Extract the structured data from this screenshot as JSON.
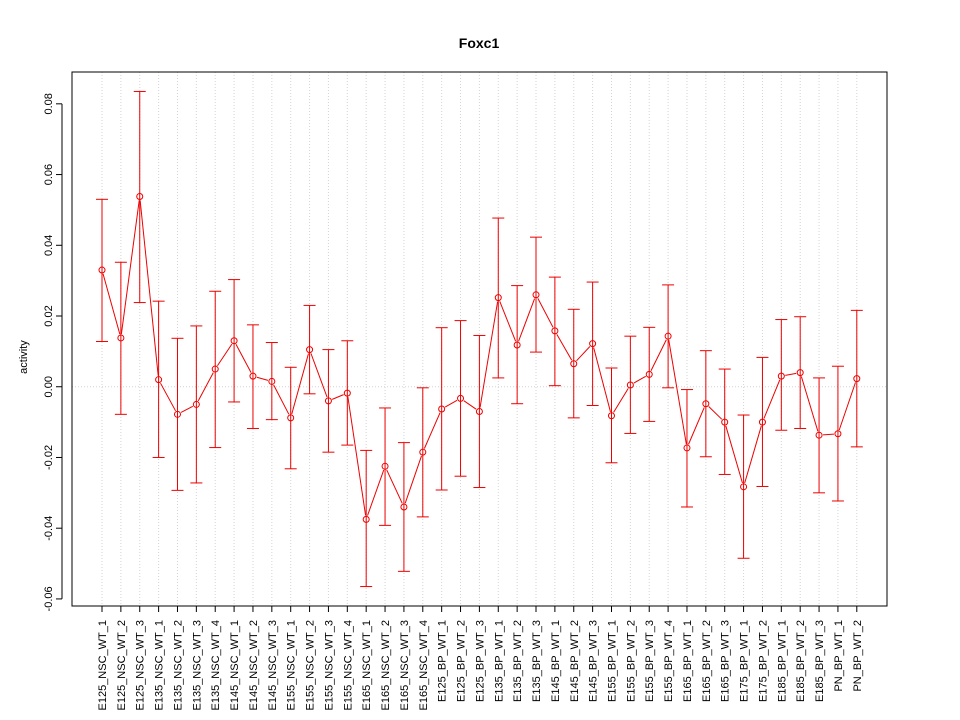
{
  "chart_data": {
    "type": "line",
    "title": "Foxc1",
    "xlabel": "",
    "ylabel": "activity",
    "ylim": [
      -0.062,
      0.089
    ],
    "yticks": [
      -0.06,
      -0.04,
      -0.02,
      0.0,
      0.02,
      0.04,
      0.06,
      0.08
    ],
    "ytick_labels": [
      "-0.06",
      "-0.04",
      "-0.02",
      "0.00",
      "0.02",
      "0.04",
      "0.06",
      "0.08"
    ],
    "grid": true,
    "zero_line": true,
    "color": "#ee0000",
    "categories": [
      "E125_NSC_WT_1",
      "E125_NSC_WT_2",
      "E125_NSC_WT_3",
      "E135_NSC_WT_1",
      "E135_NSC_WT_2",
      "E135_NSC_WT_3",
      "E135_NSC_WT_4",
      "E145_NSC_WT_1",
      "E145_NSC_WT_2",
      "E145_NSC_WT_3",
      "E155_NSC_WT_1",
      "E155_NSC_WT_2",
      "E155_NSC_WT_3",
      "E155_NSC_WT_4",
      "E165_NSC_WT_1",
      "E165_NSC_WT_2",
      "E165_NSC_WT_3",
      "E165_NSC_WT_4",
      "E125_BP_WT_1",
      "E125_BP_WT_2",
      "E125_BP_WT_3",
      "E135_BP_WT_1",
      "E135_BP_WT_2",
      "E135_BP_WT_3",
      "E145_BP_WT_1",
      "E145_BP_WT_2",
      "E145_BP_WT_3",
      "E155_BP_WT_1",
      "E155_BP_WT_2",
      "E155_BP_WT_3",
      "E155_BP_WT_4",
      "E165_BP_WT_1",
      "E165_BP_WT_2",
      "E165_BP_WT_3",
      "E175_BP_WT_1",
      "E175_BP_WT_2",
      "E185_BP_WT_1",
      "E185_BP_WT_2",
      "E185_BP_WT_3",
      "PN_BP_WT_1",
      "PN_BP_WT_2"
    ],
    "series": [
      {
        "values": [
          0.033,
          0.0138,
          0.0538,
          0.002,
          -0.0078,
          -0.005,
          0.005,
          0.013,
          0.003,
          0.0015,
          -0.0088,
          0.0105,
          -0.004,
          -0.0018,
          -0.0375,
          -0.0225,
          -0.034,
          -0.0185,
          -0.0063,
          -0.0033,
          -0.007,
          0.0252,
          0.0118,
          0.026,
          0.0158,
          0.0065,
          0.0122,
          -0.0082,
          0.0005,
          0.0035,
          0.0143,
          -0.0173,
          -0.0048,
          -0.01,
          -0.0283,
          -0.01,
          0.003,
          0.004,
          -0.0137,
          -0.0133,
          0.0023
        ],
        "lower": [
          0.0128,
          -0.0078,
          0.0238,
          -0.02,
          -0.0293,
          -0.0272,
          -0.0172,
          -0.0043,
          -0.0118,
          -0.0093,
          -0.0232,
          -0.002,
          -0.0185,
          -0.0165,
          -0.0565,
          -0.0392,
          -0.0522,
          -0.0368,
          -0.0292,
          -0.0253,
          -0.0285,
          0.0025,
          -0.0048,
          0.0098,
          0.0003,
          -0.0088,
          -0.0053,
          -0.0215,
          -0.0132,
          -0.0098,
          -0.0003,
          -0.034,
          -0.0198,
          -0.0248,
          -0.0485,
          -0.0282,
          -0.0123,
          -0.0118,
          -0.03,
          -0.0323,
          -0.017
        ],
        "upper": [
          0.053,
          0.0352,
          0.0835,
          0.0242,
          0.0137,
          0.0172,
          0.027,
          0.0303,
          0.0175,
          0.0125,
          0.0055,
          0.023,
          0.0105,
          0.013,
          -0.018,
          -0.006,
          -0.0158,
          -0.0003,
          0.0167,
          0.0187,
          0.0145,
          0.0477,
          0.0286,
          0.0423,
          0.031,
          0.0219,
          0.0296,
          0.0053,
          0.0143,
          0.0168,
          0.0288,
          -0.0008,
          0.0102,
          0.005,
          -0.008,
          0.0083,
          0.019,
          0.0198,
          0.0025,
          0.0058,
          0.0216
        ]
      }
    ]
  }
}
